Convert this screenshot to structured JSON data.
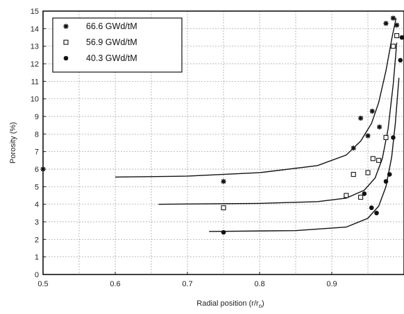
{
  "chart_data": {
    "type": "scatter",
    "title": "",
    "xlabel": "Radial position  (r/r",
    "xlabel_sub": "o",
    "xlabel_end": ")",
    "ylabel": "Porosity  (%)",
    "xlim": [
      0.5,
      1.0
    ],
    "ylim": [
      0,
      15
    ],
    "x_ticks": [
      0.5,
      0.6,
      0.7,
      0.8,
      0.9
    ],
    "x_tick_labels": [
      "0.5",
      "0.6",
      "0.7",
      "0.8",
      "0.9"
    ],
    "y_ticks": [
      0,
      1,
      2,
      3,
      4,
      5,
      6,
      7,
      8,
      9,
      10,
      11,
      12,
      13,
      14,
      15
    ],
    "y_tick_labels": [
      "0",
      "1",
      "2",
      "3",
      "4",
      "5",
      "6",
      "7",
      "8",
      "9",
      "10",
      "11",
      "12",
      "13",
      "14",
      "15"
    ],
    "grid": true,
    "legend_position": "top-left",
    "series": [
      {
        "name": "66.6 GWd/tM",
        "marker": "asterisk",
        "points": [
          [
            0.5,
            6.0
          ],
          [
            0.75,
            5.3
          ],
          [
            0.93,
            7.2
          ],
          [
            0.94,
            8.9
          ],
          [
            0.95,
            7.9
          ],
          [
            0.956,
            9.3
          ],
          [
            0.966,
            8.4
          ],
          [
            0.975,
            14.3
          ],
          [
            0.985,
            14.6
          ],
          [
            0.99,
            14.2
          ]
        ],
        "fit": [
          [
            0.6,
            5.55
          ],
          [
            0.7,
            5.6
          ],
          [
            0.8,
            5.8
          ],
          [
            0.88,
            6.2
          ],
          [
            0.92,
            6.8
          ],
          [
            0.94,
            7.6
          ],
          [
            0.955,
            8.6
          ],
          [
            0.965,
            9.8
          ],
          [
            0.975,
            11.6
          ],
          [
            0.983,
            13.4
          ],
          [
            0.989,
            14.6
          ]
        ]
      },
      {
        "name": "56.9 GWd/tM",
        "marker": "open-square",
        "points": [
          [
            0.75,
            3.8
          ],
          [
            0.92,
            4.5
          ],
          [
            0.93,
            5.7
          ],
          [
            0.94,
            4.4
          ],
          [
            0.95,
            5.8
          ],
          [
            0.957,
            6.6
          ],
          [
            0.965,
            6.5
          ],
          [
            0.975,
            7.8
          ],
          [
            0.985,
            13.0
          ],
          [
            0.99,
            13.6
          ]
        ],
        "fit": [
          [
            0.66,
            4.0
          ],
          [
            0.8,
            4.05
          ],
          [
            0.88,
            4.15
          ],
          [
            0.92,
            4.35
          ],
          [
            0.945,
            4.8
          ],
          [
            0.96,
            5.5
          ],
          [
            0.97,
            6.6
          ],
          [
            0.978,
            8.3
          ],
          [
            0.985,
            10.8
          ],
          [
            0.99,
            13.2
          ]
        ]
      },
      {
        "name": "40.3 GWd/tM",
        "marker": "filled-circle",
        "points": [
          [
            0.75,
            2.4
          ],
          [
            0.945,
            4.6
          ],
          [
            0.955,
            3.8
          ],
          [
            0.962,
            3.5
          ],
          [
            0.975,
            5.3
          ],
          [
            0.98,
            5.7
          ],
          [
            0.985,
            7.8
          ],
          [
            0.995,
            12.2
          ],
          [
            1.0,
            13.5
          ]
        ],
        "fit": [
          [
            0.73,
            2.45
          ],
          [
            0.85,
            2.5
          ],
          [
            0.92,
            2.7
          ],
          [
            0.95,
            3.2
          ],
          [
            0.965,
            3.9
          ],
          [
            0.975,
            5.0
          ],
          [
            0.983,
            6.7
          ],
          [
            0.988,
            8.6
          ],
          [
            0.993,
            11.2
          ]
        ]
      }
    ]
  }
}
